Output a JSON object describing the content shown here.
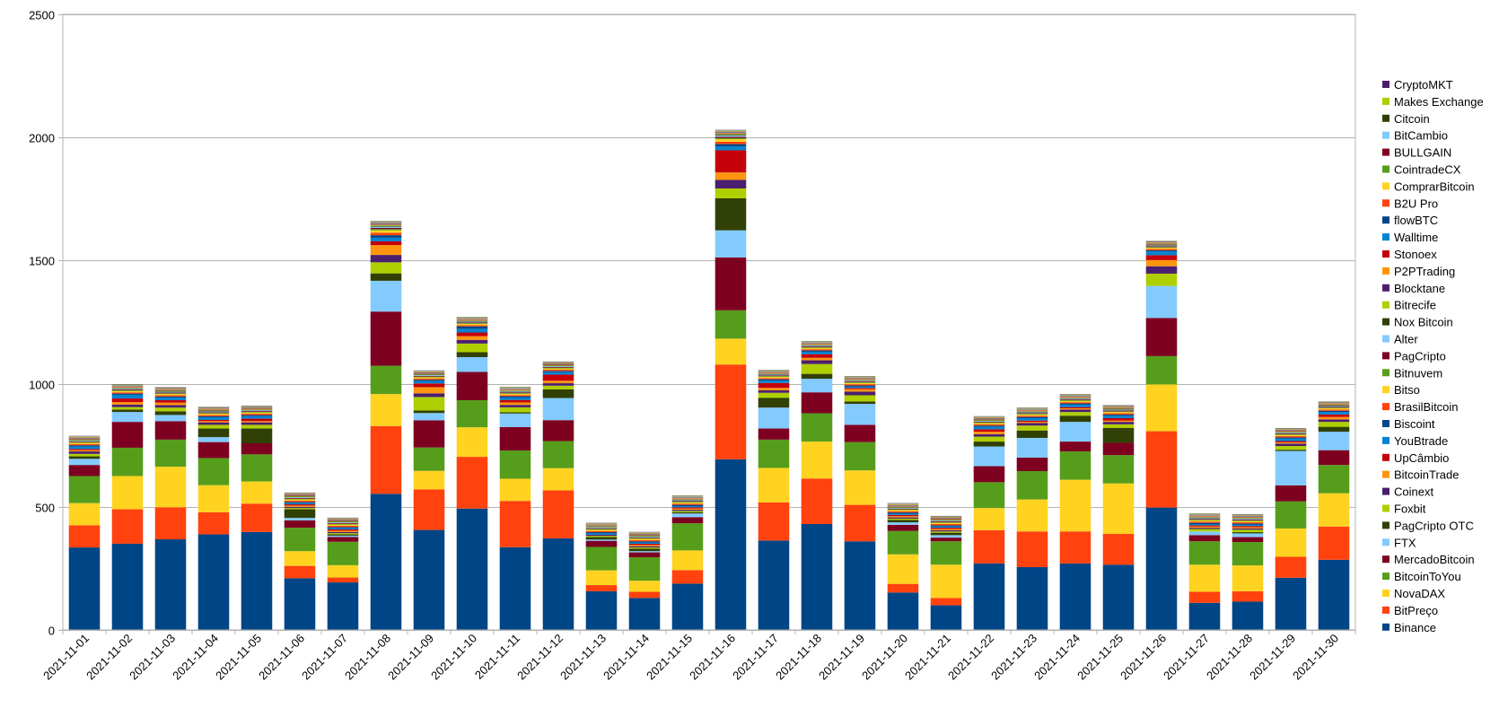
{
  "chart_data": {
    "type": "bar",
    "stacked": true,
    "title": "",
    "xlabel": "",
    "ylabel": "",
    "ylim": [
      0,
      2500
    ],
    "yticks": [
      0,
      500,
      1000,
      1500,
      2000,
      2500
    ],
    "grid": true,
    "legend_position": "right",
    "categories": [
      "2021-11-01",
      "2021-11-02",
      "2021-11-03",
      "2021-11-04",
      "2021-11-05",
      "2021-11-06",
      "2021-11-07",
      "2021-11-08",
      "2021-11-09",
      "2021-11-10",
      "2021-11-11",
      "2021-11-12",
      "2021-11-13",
      "2021-11-14",
      "2021-11-15",
      "2021-11-16",
      "2021-11-17",
      "2021-11-18",
      "2021-11-19",
      "2021-11-20",
      "2021-11-21",
      "2021-11-22",
      "2021-11-23",
      "2021-11-24",
      "2021-11-25",
      "2021-11-26",
      "2021-11-27",
      "2021-11-28",
      "2021-11-29",
      "2021-11-30"
    ],
    "series": [
      {
        "name": "Binance",
        "color": "#004586",
        "values": [
          335,
          350,
          368,
          388,
          398,
          210,
          193,
          553,
          406,
          493,
          336,
          372,
          157,
          130,
          188,
          693,
          363,
          430,
          360,
          152,
          100,
          270,
          255,
          270,
          265,
          497,
          110,
          115,
          212,
          285
        ]
      },
      {
        "name": "BitPreço",
        "color": "#ff420e",
        "values": [
          90,
          140,
          130,
          90,
          115,
          50,
          20,
          275,
          165,
          210,
          188,
          195,
          25,
          25,
          55,
          385,
          155,
          185,
          148,
          35,
          30,
          135,
          145,
          130,
          125,
          310,
          45,
          42,
          85,
          135
        ]
      },
      {
        "name": "NovaDAX",
        "color": "#ffd320",
        "values": [
          90,
          135,
          165,
          110,
          90,
          60,
          50,
          130,
          75,
          120,
          90,
          90,
          60,
          45,
          80,
          105,
          140,
          150,
          140,
          120,
          135,
          90,
          130,
          210,
          205,
          190,
          110,
          105,
          115,
          135
        ]
      },
      {
        "name": "BitcoinToYou",
        "color": "#579d1c",
        "values": [
          110,
          115,
          110,
          110,
          110,
          95,
          95,
          115,
          95,
          110,
          115,
          110,
          95,
          95,
          110,
          115,
          115,
          115,
          115,
          95,
          95,
          105,
          115,
          115,
          115,
          115,
          95,
          95,
          110,
          115
        ]
      },
      {
        "name": "MercadoBitcoin",
        "color": "#7e0021",
        "values": [
          45,
          105,
          75,
          65,
          45,
          30,
          20,
          220,
          110,
          115,
          95,
          85,
          25,
          20,
          25,
          215,
          45,
          85,
          70,
          25,
          15,
          65,
          55,
          40,
          50,
          155,
          25,
          20,
          65,
          60
        ]
      },
      {
        "name": "FTX",
        "color": "#83caff",
        "values": [
          25,
          40,
          25,
          20,
          0,
          10,
          5,
          125,
          30,
          60,
          55,
          90,
          5,
          5,
          15,
          110,
          85,
          55,
          85,
          10,
          10,
          80,
          80,
          80,
          0,
          130,
          15,
          15,
          140,
          75
        ]
      },
      {
        "name": "PagCripto OTC",
        "color": "#314004",
        "values": [
          10,
          10,
          15,
          35,
          60,
          35,
          5,
          30,
          10,
          20,
          5,
          35,
          10,
          10,
          5,
          130,
          40,
          20,
          10,
          10,
          10,
          20,
          30,
          25,
          60,
          0,
          0,
          5,
          5,
          20
        ]
      },
      {
        "name": "Foxbit",
        "color": "#aecf00",
        "values": [
          10,
          10,
          15,
          15,
          15,
          5,
          5,
          45,
          55,
          35,
          20,
          15,
          5,
          5,
          5,
          40,
          20,
          40,
          25,
          5,
          5,
          20,
          20,
          15,
          15,
          50,
          10,
          10,
          15,
          20
        ]
      },
      {
        "name": "Coinext",
        "color": "#4b1f6f",
        "values": [
          10,
          10,
          10,
          10,
          10,
          5,
          5,
          30,
          15,
          15,
          10,
          10,
          5,
          5,
          5,
          35,
          10,
          15,
          15,
          5,
          5,
          10,
          10,
          10,
          10,
          30,
          5,
          5,
          10,
          10
        ]
      },
      {
        "name": "BitcoinTrade",
        "color": "#ff950e",
        "values": [
          5,
          10,
          10,
          5,
          5,
          5,
          5,
          40,
          25,
          15,
          10,
          10,
          0,
          5,
          5,
          30,
          10,
          10,
          10,
          5,
          5,
          10,
          5,
          5,
          5,
          25,
          5,
          5,
          5,
          10
        ]
      },
      {
        "name": "UpCâmbio",
        "color": "#c5000b",
        "values": [
          5,
          15,
          10,
          5,
          10,
          5,
          5,
          15,
          15,
          15,
          10,
          25,
          0,
          5,
          5,
          90,
          20,
          15,
          5,
          5,
          5,
          10,
          5,
          5,
          10,
          20,
          5,
          5,
          5,
          10
        ]
      },
      {
        "name": "YouBtrade",
        "color": "#0084d1",
        "values": [
          10,
          15,
          10,
          10,
          10,
          5,
          5,
          15,
          10,
          15,
          10,
          10,
          5,
          5,
          5,
          15,
          10,
          10,
          5,
          5,
          5,
          10,
          10,
          10,
          10,
          15,
          5,
          5,
          10,
          10
        ]
      },
      {
        "name": "Biscoint",
        "color": "#004586",
        "values": [
          5,
          5,
          5,
          5,
          5,
          5,
          5,
          10,
          5,
          10,
          5,
          5,
          5,
          5,
          5,
          10,
          5,
          5,
          5,
          5,
          5,
          5,
          5,
          5,
          5,
          5,
          5,
          5,
          5,
          5
        ]
      },
      {
        "name": "BrasilBitcoin",
        "color": "#ff420e",
        "values": [
          5,
          5,
          5,
          5,
          5,
          5,
          5,
          10,
          5,
          5,
          5,
          5,
          5,
          5,
          5,
          10,
          5,
          5,
          5,
          5,
          5,
          5,
          5,
          5,
          5,
          5,
          5,
          5,
          5,
          5
        ]
      },
      {
        "name": "Bitso",
        "color": "#ffd320",
        "values": [
          5,
          5,
          5,
          5,
          5,
          5,
          5,
          10,
          5,
          5,
          5,
          5,
          5,
          5,
          5,
          10,
          5,
          5,
          5,
          5,
          5,
          5,
          5,
          5,
          5,
          5,
          5,
          5,
          5,
          5
        ]
      },
      {
        "name": "Bitnuvem",
        "color": "#579d1c",
        "values": [
          3,
          3,
          3,
          3,
          3,
          3,
          3,
          5,
          3,
          3,
          3,
          3,
          3,
          3,
          3,
          5,
          3,
          3,
          3,
          3,
          3,
          3,
          3,
          3,
          3,
          3,
          3,
          3,
          3,
          3
        ]
      },
      {
        "name": "PagCripto",
        "color": "#7e0021",
        "values": [
          3,
          3,
          3,
          3,
          3,
          3,
          3,
          5,
          3,
          3,
          3,
          3,
          3,
          3,
          3,
          5,
          3,
          3,
          3,
          3,
          3,
          3,
          3,
          3,
          3,
          3,
          3,
          3,
          3,
          3
        ]
      },
      {
        "name": "Alter",
        "color": "#83caff",
        "values": [
          3,
          3,
          3,
          3,
          3,
          3,
          3,
          5,
          3,
          3,
          3,
          3,
          3,
          3,
          3,
          5,
          3,
          3,
          3,
          3,
          3,
          3,
          3,
          3,
          3,
          3,
          3,
          3,
          3,
          3
        ]
      },
      {
        "name": "Nox Bitcoin",
        "color": "#314004",
        "values": [
          2,
          2,
          2,
          2,
          2,
          2,
          2,
          3,
          2,
          2,
          2,
          2,
          2,
          2,
          2,
          3,
          2,
          2,
          2,
          2,
          2,
          2,
          2,
          2,
          2,
          2,
          2,
          2,
          2,
          2
        ]
      },
      {
        "name": "Bitrecife",
        "color": "#aecf00",
        "values": [
          2,
          2,
          2,
          2,
          2,
          2,
          2,
          3,
          2,
          2,
          2,
          2,
          2,
          2,
          2,
          3,
          2,
          2,
          2,
          2,
          2,
          2,
          2,
          2,
          2,
          2,
          2,
          2,
          2,
          2
        ]
      },
      {
        "name": "Blocktane",
        "color": "#4b1f6f",
        "values": [
          2,
          2,
          2,
          2,
          2,
          2,
          2,
          2,
          2,
          2,
          2,
          2,
          2,
          2,
          2,
          2,
          2,
          2,
          2,
          2,
          2,
          2,
          2,
          2,
          2,
          2,
          2,
          2,
          2,
          2
        ]
      },
      {
        "name": "P2PTrading",
        "color": "#ff950e",
        "values": [
          2,
          2,
          2,
          2,
          2,
          2,
          2,
          2,
          2,
          2,
          2,
          2,
          2,
          2,
          2,
          2,
          2,
          2,
          2,
          2,
          2,
          2,
          2,
          2,
          2,
          2,
          2,
          2,
          2,
          2
        ]
      },
      {
        "name": "Stonoex",
        "color": "#c5000b",
        "values": [
          1,
          1,
          1,
          1,
          1,
          1,
          1,
          2,
          1,
          1,
          1,
          1,
          1,
          1,
          1,
          2,
          1,
          1,
          1,
          1,
          1,
          1,
          1,
          1,
          1,
          1,
          1,
          1,
          1,
          1
        ]
      },
      {
        "name": "Walltime",
        "color": "#0084d1",
        "values": [
          1,
          1,
          1,
          1,
          1,
          1,
          1,
          2,
          1,
          1,
          1,
          1,
          1,
          1,
          1,
          2,
          1,
          1,
          1,
          1,
          1,
          1,
          1,
          1,
          1,
          1,
          1,
          1,
          1,
          1
        ]
      },
      {
        "name": "flowBTC",
        "color": "#004586",
        "values": [
          1,
          1,
          1,
          1,
          1,
          1,
          1,
          1,
          1,
          1,
          1,
          1,
          1,
          1,
          1,
          1,
          1,
          1,
          1,
          1,
          1,
          1,
          1,
          1,
          1,
          1,
          1,
          1,
          1,
          1
        ]
      },
      {
        "name": "B2U Pro",
        "color": "#ff420e",
        "values": [
          1,
          1,
          1,
          1,
          1,
          1,
          1,
          1,
          1,
          1,
          1,
          1,
          1,
          1,
          1,
          1,
          1,
          1,
          1,
          1,
          1,
          1,
          1,
          1,
          1,
          1,
          1,
          1,
          1,
          1
        ]
      },
      {
        "name": "ComprarBitcoin",
        "color": "#ffd320",
        "values": [
          1,
          1,
          1,
          1,
          1,
          1,
          1,
          1,
          1,
          1,
          1,
          1,
          1,
          1,
          1,
          1,
          1,
          1,
          1,
          1,
          1,
          1,
          1,
          1,
          1,
          1,
          1,
          1,
          1,
          1
        ]
      },
      {
        "name": "CointradeCX",
        "color": "#579d1c",
        "values": [
          1,
          1,
          1,
          1,
          1,
          1,
          1,
          1,
          1,
          1,
          1,
          1,
          1,
          1,
          1,
          1,
          1,
          1,
          1,
          1,
          1,
          1,
          1,
          1,
          1,
          1,
          1,
          1,
          1,
          1
        ]
      },
      {
        "name": "BULLGAIN",
        "color": "#7e0021",
        "values": [
          1,
          1,
          1,
          1,
          1,
          1,
          1,
          1,
          1,
          1,
          1,
          1,
          1,
          1,
          1,
          1,
          1,
          1,
          1,
          1,
          1,
          1,
          1,
          1,
          1,
          1,
          1,
          1,
          1,
          1
        ]
      },
      {
        "name": "BitCambio",
        "color": "#83caff",
        "values": [
          1,
          1,
          1,
          1,
          1,
          1,
          1,
          1,
          1,
          1,
          1,
          1,
          1,
          1,
          1,
          1,
          1,
          1,
          1,
          1,
          1,
          1,
          1,
          1,
          1,
          1,
          1,
          1,
          1,
          1
        ]
      },
      {
        "name": "Citcoin",
        "color": "#314004",
        "values": [
          1,
          1,
          1,
          1,
          1,
          1,
          1,
          1,
          1,
          1,
          1,
          1,
          1,
          1,
          1,
          1,
          1,
          1,
          1,
          1,
          1,
          1,
          1,
          1,
          1,
          1,
          1,
          1,
          1,
          1
        ]
      },
      {
        "name": "Makes Exchange",
        "color": "#aecf00",
        "values": [
          1,
          1,
          1,
          1,
          1,
          1,
          1,
          1,
          1,
          1,
          1,
          1,
          1,
          1,
          1,
          1,
          1,
          1,
          1,
          1,
          1,
          1,
          1,
          1,
          1,
          1,
          1,
          1,
          1,
          1
        ]
      },
      {
        "name": "CryptoMKT",
        "color": "#4b1f6f",
        "values": [
          1,
          1,
          1,
          1,
          1,
          1,
          1,
          1,
          1,
          1,
          1,
          1,
          1,
          1,
          1,
          1,
          1,
          1,
          1,
          1,
          1,
          1,
          1,
          1,
          1,
          1,
          1,
          1,
          1,
          1
        ]
      }
    ]
  }
}
